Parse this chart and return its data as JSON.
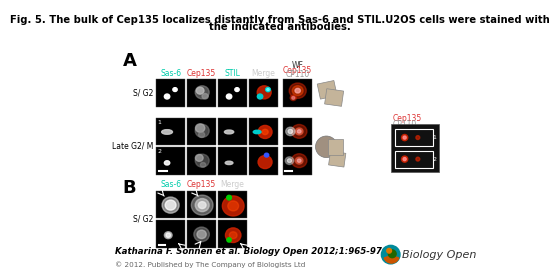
{
  "title_line1": "Fig. 5. The bulk of Cep135 localizes distantly from Sas-6 and STIL.U2OS cells were stained with",
  "title_line2": "the indicated antibodies.",
  "title_fontsize": 7.5,
  "citation": "Katharina F. Sonnen et al. Biology Open 2012;1:965-976",
  "copyright": "© 2012. Published by The Company of Biologists Ltd",
  "label_A": "A",
  "label_B": "B",
  "col_labels_A": [
    "Sas-6",
    "Cep135",
    "STIL",
    "Merge"
  ],
  "col_colors_A": [
    "#00ccaa",
    "#dd3333",
    "#00ccaa",
    "#cccccc"
  ],
  "col_labels_B": [
    "Sas-6",
    "Cep135",
    "Merge"
  ],
  "col_colors_B": [
    "#00ccaa",
    "#dd3333",
    "#cccccc"
  ],
  "row_label_sg2": "S/ G2",
  "row_label_g2m": "Late G2/ M",
  "wf_label1": "WF",
  "wf_label2": "Cep135",
  "wf_label3": "CP110",
  "cep_label": "Cep135",
  "cp110_label": "CP110",
  "bg_color": "#ffffff",
  "cell_bg": "#000000"
}
